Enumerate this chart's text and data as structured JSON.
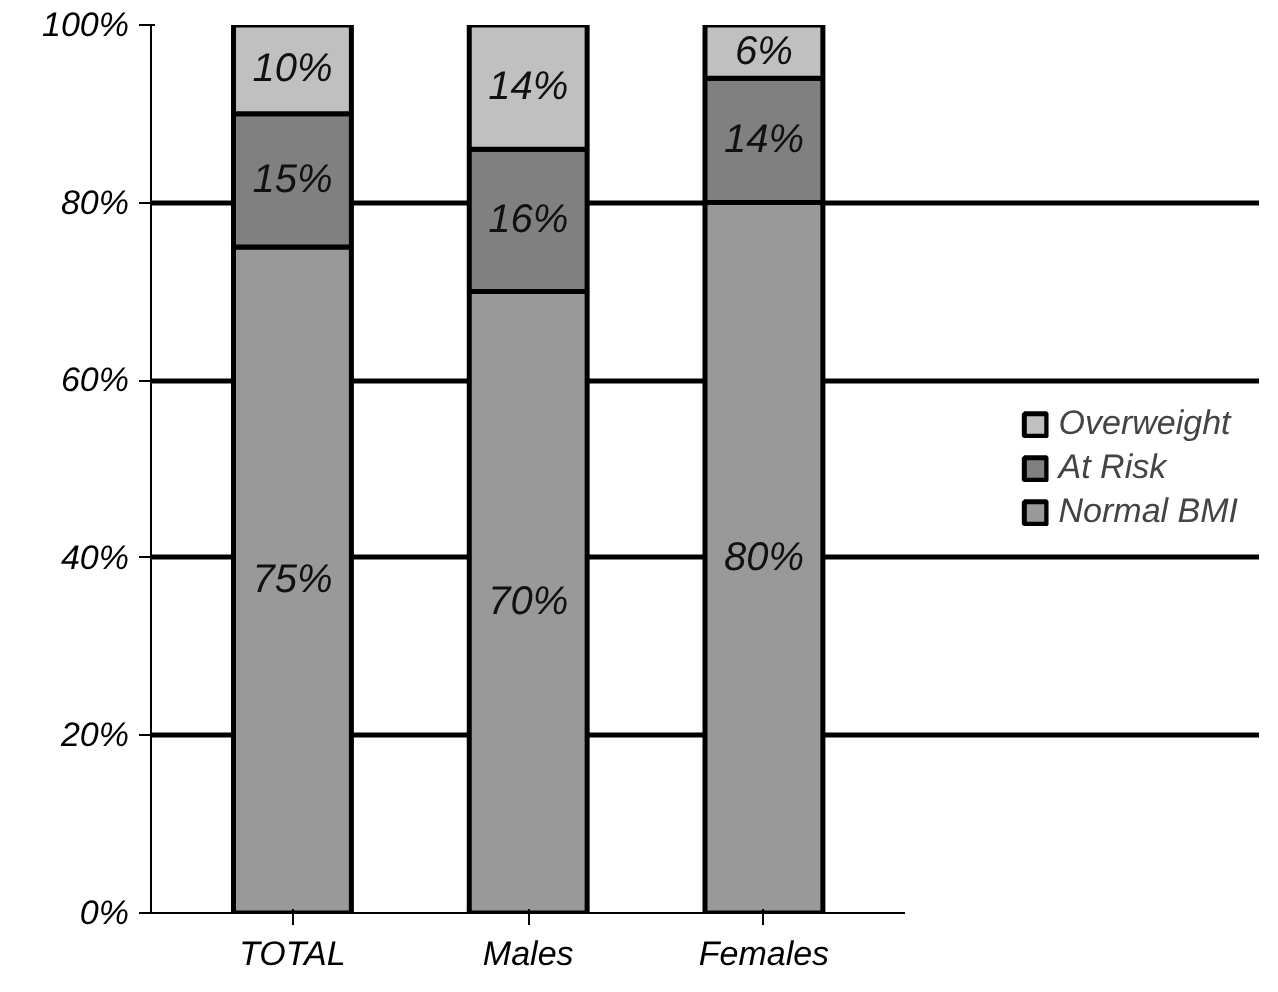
{
  "chart_data": {
    "type": "bar",
    "stacked": true,
    "categories": [
      "TOTAL",
      "Males",
      "Females"
    ],
    "series": [
      {
        "name": "Normal BMI",
        "color": "#999999",
        "values": [
          75,
          70,
          80
        ],
        "value_labels": [
          "75%",
          "70%",
          "80%"
        ]
      },
      {
        "name": "At Risk",
        "color": "#808080",
        "values": [
          15,
          16,
          14
        ],
        "value_labels": [
          "15%",
          "16%",
          "14%"
        ]
      },
      {
        "name": "Overweight",
        "color": "#c0c0c0",
        "values": [
          10,
          14,
          6
        ],
        "value_labels": [
          "10%",
          "14%",
          "6%"
        ]
      }
    ],
    "ylim": [
      0,
      100
    ],
    "yticks": [
      {
        "value": 0,
        "label": "0%"
      },
      {
        "value": 20,
        "label": "20%"
      },
      {
        "value": 40,
        "label": "40%"
      },
      {
        "value": 60,
        "label": "60%"
      },
      {
        "value": 80,
        "label": "80%"
      },
      {
        "value": 100,
        "label": "100%"
      }
    ],
    "grid": "y",
    "legend": "right"
  }
}
